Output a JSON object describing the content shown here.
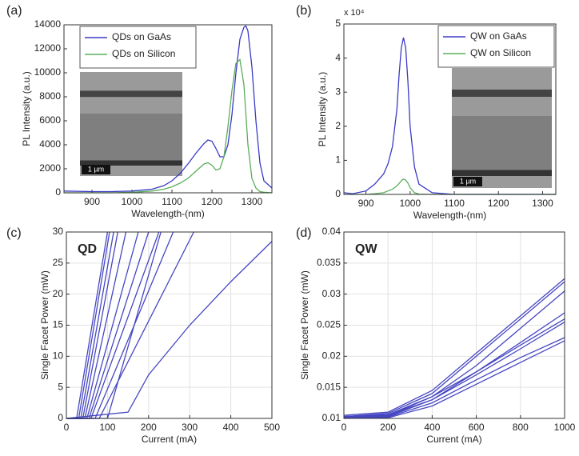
{
  "chart_data": [
    {
      "type": "line",
      "panel_label": "(a)",
      "x_label": "Wavelength-(nm)",
      "y_label": "PL Intensity (a.u.)",
      "xlim": [
        830,
        1350
      ],
      "xticks": [
        900,
        1000,
        1100,
        1200,
        1300
      ],
      "ylim": [
        0,
        14000
      ],
      "yticks": [
        0,
        2000,
        4000,
        6000,
        8000,
        10000,
        12000,
        14000
      ],
      "grid": false,
      "legend": "upper left",
      "inset_label": "1 µm",
      "x": [
        830,
        900,
        950,
        1000,
        1050,
        1080,
        1100,
        1120,
        1140,
        1160,
        1180,
        1190,
        1200,
        1210,
        1220,
        1230,
        1240,
        1250,
        1260,
        1270,
        1280,
        1285,
        1290,
        1300,
        1310,
        1320,
        1330,
        1350
      ],
      "series": [
        {
          "name": "QDs on GaAs",
          "color": "#3a3ac6",
          "values": [
            150,
            100,
            100,
            150,
            300,
            600,
            1000,
            1600,
            2400,
            3300,
            4100,
            4400,
            4300,
            3700,
            3000,
            3000,
            4000,
            6500,
            10000,
            12800,
            13800,
            13900,
            13500,
            10500,
            6000,
            2500,
            1000,
            400
          ]
        },
        {
          "name": "QDs on Silicon",
          "color": "#5aae5a",
          "values": [
            0,
            0,
            0,
            50,
            150,
            300,
            500,
            800,
            1200,
            1800,
            2400,
            2500,
            2300,
            1900,
            2000,
            3000,
            5500,
            8500,
            10800,
            11100,
            9000,
            6500,
            4000,
            1200,
            400,
            100,
            50,
            0
          ]
        }
      ]
    },
    {
      "type": "line",
      "panel_label": "(b)",
      "x_label": "Wavelength-(nm)",
      "y_label": "PL Intensity (a.u.)",
      "y_multiplier": "x 10⁴",
      "xlim": [
        850,
        1330
      ],
      "xticks": [
        900,
        1000,
        1100,
        1200,
        1300
      ],
      "ylim": [
        0,
        5
      ],
      "yticks": [
        0,
        1,
        2,
        3,
        4,
        5
      ],
      "grid": false,
      "legend": "upper right",
      "inset_label": "1 µm",
      "x": [
        850,
        870,
        900,
        920,
        940,
        950,
        960,
        970,
        975,
        980,
        985,
        990,
        995,
        1000,
        1010,
        1020,
        1050,
        1100,
        1200,
        1330
      ],
      "series": [
        {
          "name": "QW on GaAs",
          "color": "#3a3ac6",
          "values": [
            0.05,
            0.02,
            0.1,
            0.3,
            0.6,
            0.9,
            1.4,
            2.5,
            3.5,
            4.3,
            4.6,
            4.3,
            3.3,
            2,
            0.8,
            0.3,
            0.05,
            0,
            0,
            0
          ]
        },
        {
          "name": "QW on Silicon",
          "color": "#5aae5a",
          "values": [
            0,
            0,
            0,
            0.02,
            0.05,
            0.1,
            0.15,
            0.25,
            0.32,
            0.4,
            0.45,
            0.42,
            0.33,
            0.2,
            0.05,
            0.01,
            0,
            0,
            0,
            0
          ]
        }
      ]
    },
    {
      "type": "line",
      "panel_label": "(c)",
      "annotation": "QD",
      "x_label": "Current (mA)",
      "y_label": "Single Facet Power (mW)",
      "xlim": [
        0,
        500
      ],
      "xticks": [
        0,
        100,
        200,
        300,
        400,
        500
      ],
      "ylim": [
        0,
        30
      ],
      "yticks": [
        0,
        5,
        10,
        15,
        20,
        25,
        30
      ],
      "grid": true,
      "series": [
        {
          "color": "#4646c2",
          "x": [
            0,
            25,
            100
          ],
          "values": [
            0,
            0,
            30
          ]
        },
        {
          "color": "#4646c2",
          "x": [
            0,
            30,
            105
          ],
          "values": [
            0,
            0,
            30
          ]
        },
        {
          "color": "#4646c2",
          "x": [
            0,
            35,
            115
          ],
          "values": [
            0,
            0,
            30
          ]
        },
        {
          "color": "#4646c2",
          "x": [
            0,
            40,
            125
          ],
          "values": [
            0,
            0,
            30
          ]
        },
        {
          "color": "#4646c2",
          "x": [
            0,
            45,
            145
          ],
          "values": [
            0,
            0,
            30
          ]
        },
        {
          "color": "#4646c2",
          "x": [
            0,
            50,
            175
          ],
          "values": [
            0,
            0,
            30
          ]
        },
        {
          "color": "#4646c2",
          "x": [
            0,
            55,
            200
          ],
          "values": [
            0,
            0,
            30
          ]
        },
        {
          "color": "#4646c2",
          "x": [
            0,
            60,
            225
          ],
          "values": [
            0,
            0,
            30
          ]
        },
        {
          "color": "#4646c2",
          "x": [
            0,
            70,
            260
          ],
          "values": [
            0,
            0,
            30
          ]
        },
        {
          "color": "#4646c2",
          "x": [
            0,
            80,
            310
          ],
          "values": [
            0,
            0,
            30
          ]
        },
        {
          "color": "#4646c2",
          "x": [
            0,
            100,
            230
          ],
          "values": [
            0,
            0,
            30
          ]
        },
        {
          "color": "#4646c2",
          "x": [
            0,
            150,
            200,
            300,
            400,
            500
          ],
          "values": [
            0,
            1,
            7,
            15,
            22,
            28.5
          ]
        }
      ]
    },
    {
      "type": "line",
      "panel_label": "(d)",
      "annotation": "QW",
      "x_label": "Current (mA)",
      "y_label": "Single Facet Power (mW)",
      "xlim": [
        0,
        1000
      ],
      "xticks": [
        0,
        200,
        400,
        600,
        800,
        1000
      ],
      "ylim": [
        0.01,
        0.04
      ],
      "yticks": [
        0.01,
        0.015,
        0.02,
        0.025,
        0.03,
        0.035,
        0.04
      ],
      "grid": true,
      "x": [
        0,
        200,
        400,
        600,
        800,
        1000
      ],
      "series": [
        {
          "color": "#4646c2",
          "values": [
            0.0105,
            0.011,
            0.0145,
            0.0205,
            0.0265,
            0.0325
          ]
        },
        {
          "color": "#4646c2",
          "values": [
            0.0103,
            0.0108,
            0.014,
            0.02,
            0.026,
            0.032
          ]
        },
        {
          "color": "#4646c2",
          "values": [
            0.0103,
            0.0106,
            0.0135,
            0.0185,
            0.0245,
            0.0305
          ]
        },
        {
          "color": "#4646c2",
          "values": [
            0.0102,
            0.0105,
            0.013,
            0.0175,
            0.0222,
            0.027
          ]
        },
        {
          "color": "#4646c2",
          "values": [
            0.0101,
            0.0104,
            0.0135,
            0.0175,
            0.0218,
            0.026
          ]
        },
        {
          "color": "#4646c2",
          "values": [
            0.0101,
            0.0103,
            0.013,
            0.017,
            0.0212,
            0.0255
          ]
        },
        {
          "color": "#4646c2",
          "values": [
            0.0101,
            0.0102,
            0.0125,
            0.0162,
            0.0198,
            0.023
          ]
        },
        {
          "color": "#4646c2",
          "values": [
            0.01,
            0.0101,
            0.012,
            0.0155,
            0.019,
            0.0225
          ]
        }
      ]
    }
  ]
}
